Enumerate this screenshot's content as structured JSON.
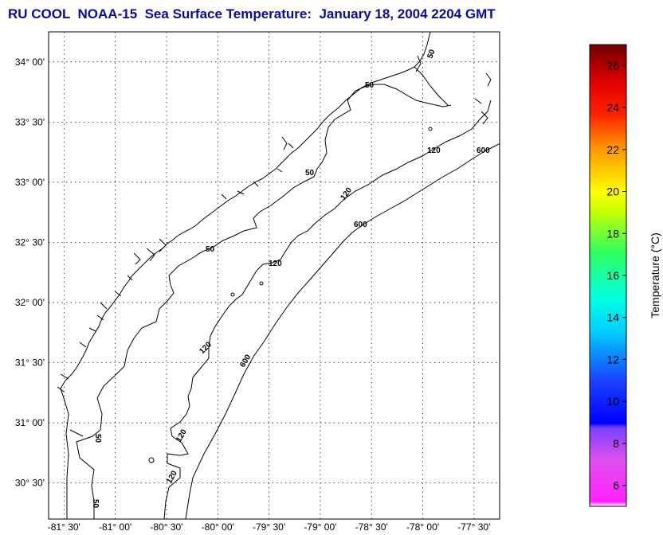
{
  "title": "RU COOL  NOAA-15  Sea Surface Temperature:  January 18, 2004 2204 GMT",
  "map": {
    "lat_ticks": [
      "34° 00'",
      "33° 30'",
      "33° 00'",
      "32° 30'",
      "32° 00'",
      "31° 30'",
      "31° 00'",
      "30° 30'"
    ],
    "lon_ticks": [
      "-81° 30'",
      "-81° 00'",
      "-80° 30'",
      "-80° 00'",
      "-79° 30'",
      "-79° 00'",
      "-78° 30'",
      "-78° 00'",
      "-77° 30'"
    ],
    "lat_range": [
      30.2,
      34.25
    ],
    "lon_range": [
      -81.65,
      -77.25
    ],
    "grid": true,
    "isobath_labels": [
      "50",
      "50",
      "50",
      "50",
      "50",
      "120",
      "120",
      "120",
      "120",
      "120",
      "120",
      "600",
      "600",
      "600"
    ]
  },
  "colorbar": {
    "label": "Temperature (°C)",
    "ticks": [
      "6",
      "8",
      "10",
      "12",
      "14",
      "16",
      "18",
      "20",
      "22",
      "24",
      "26"
    ],
    "range": [
      5,
      27
    ]
  }
}
